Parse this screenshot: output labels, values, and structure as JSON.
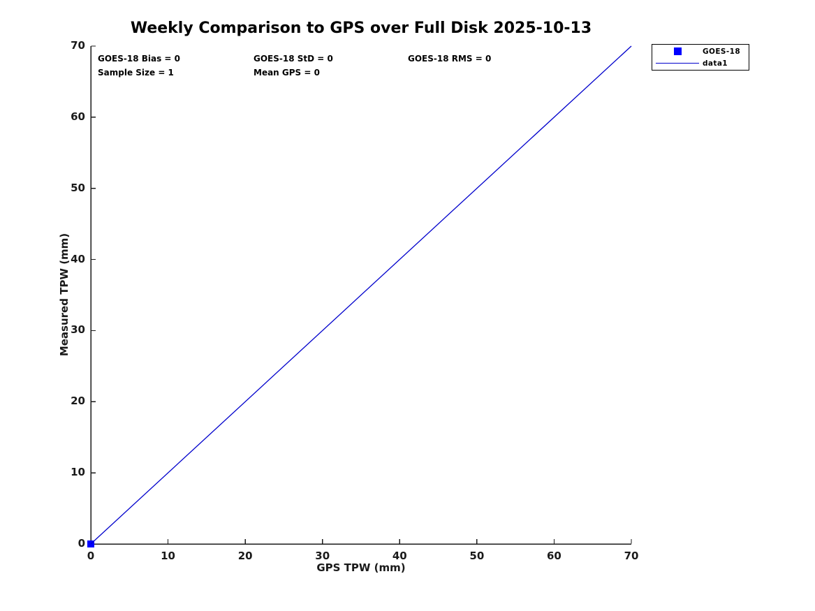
{
  "title": "Weekly Comparison to GPS over Full Disk 2025-10-13",
  "annotations": {
    "bias": "GOES-18 Bias = 0",
    "std": "GOES-18 StD = 0",
    "rms": "GOES-18 RMS = 0",
    "sample_size": "Sample Size = 1",
    "mean_gps": "Mean GPS = 0"
  },
  "legend": {
    "entries": [
      {
        "label": "GOES-18",
        "symbol": "square-marker",
        "color": "#0000ff"
      },
      {
        "label": "data1",
        "symbol": "line",
        "color": "#0000cc"
      }
    ]
  },
  "colors": {
    "marker_blue": "#0000ff",
    "line_blue": "#0000cc",
    "axis": "#1a1a1a"
  },
  "chart_data": {
    "type": "scatter",
    "title": "Weekly Comparison to GPS over Full Disk 2025-10-13",
    "xlabel": "GPS TPW (mm)",
    "ylabel": "Measured TPW (mm)",
    "xlim": [
      0,
      70
    ],
    "ylim": [
      0,
      70
    ],
    "x_ticks": [
      0,
      10,
      20,
      30,
      40,
      50,
      60,
      70
    ],
    "y_ticks": [
      0,
      10,
      20,
      30,
      40,
      50,
      60,
      70
    ],
    "grid": false,
    "legend_position": "outside-top-right",
    "series": [
      {
        "name": "GOES-18",
        "type": "scatter",
        "marker": "square",
        "color": "#0000ff",
        "points": [
          [
            0,
            0
          ]
        ]
      },
      {
        "name": "data1",
        "type": "line",
        "color": "#0000cc",
        "points": [
          [
            0,
            0
          ],
          [
            70,
            70
          ]
        ]
      }
    ]
  }
}
